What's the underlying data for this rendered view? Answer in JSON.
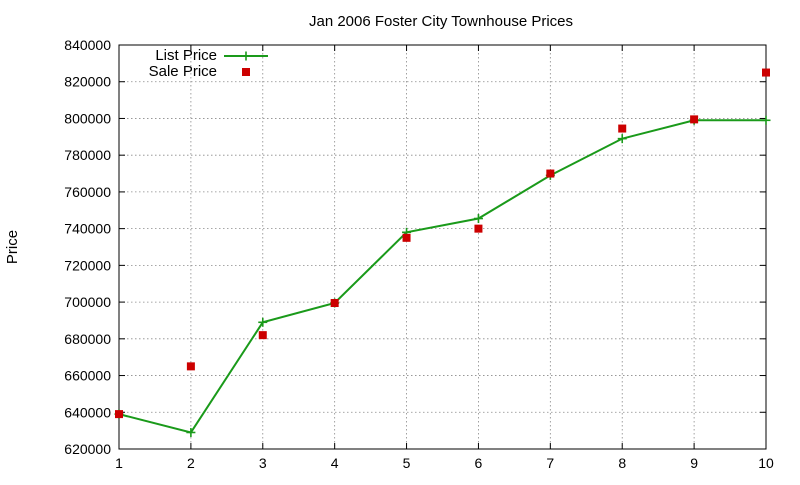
{
  "chart_data": {
    "type": "line",
    "title": "Jan 2006 Foster City Townhouse Prices",
    "xlabel": "",
    "ylabel": "Price",
    "x": [
      1,
      2,
      3,
      4,
      5,
      6,
      7,
      8,
      9,
      10
    ],
    "xlim": [
      1,
      10
    ],
    "ylim": [
      620000,
      840000
    ],
    "xticks": [
      "1",
      "2",
      "3",
      "4",
      "5",
      "6",
      "7",
      "8",
      "9",
      "10"
    ],
    "yticks": [
      "620000",
      "640000",
      "660000",
      "680000",
      "700000",
      "720000",
      "740000",
      "760000",
      "780000",
      "800000",
      "820000",
      "840000"
    ],
    "grid": true,
    "legend_position": "top-left",
    "series": [
      {
        "name": "List Price",
        "style": "line-with-plus-markers",
        "color": "#1a9a1a",
        "values": [
          639000,
          629000,
          689000,
          699500,
          738000,
          745500,
          769000,
          789000,
          799000,
          799000
        ]
      },
      {
        "name": "Sale Price",
        "style": "square-markers",
        "color": "#cc0000",
        "values": [
          639000,
          665000,
          682000,
          699500,
          735000,
          740000,
          770000,
          794500,
          799500,
          825000
        ]
      }
    ]
  }
}
